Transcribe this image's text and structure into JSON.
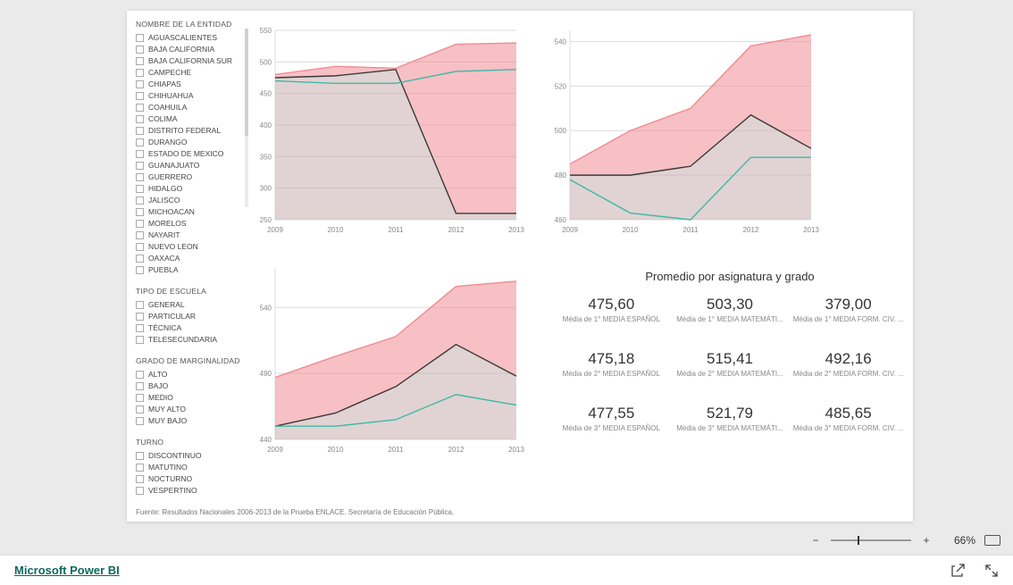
{
  "background_color": "#eaeaea",
  "report_bg": "#ffffff",
  "filters": {
    "entidad": {
      "title": "NOMBRE DE LA ENTIDAD",
      "items": [
        "AGUASCALIENTES",
        "BAJA CALIFORNIA",
        "BAJA CALIFORNIA SUR",
        "CAMPECHE",
        "CHIAPAS",
        "CHIHUAHUA",
        "COAHUILA",
        "COLIMA",
        "DISTRITO FEDERAL",
        "DURANGO",
        "ESTADO DE MEXICO",
        "GUANAJUATO",
        "GUERRERO",
        "HIDALGO",
        "JALISCO",
        "MICHOACAN",
        "MORELOS",
        "NAYARIT",
        "NUEVO LEON",
        "OAXACA",
        "PUEBLA"
      ]
    },
    "tipo_escuela": {
      "title": "TIPO DE ESCUELA",
      "items": [
        "GENERAL",
        "PARTICULAR",
        "TÉCNICA",
        "TELESECUNDARIA"
      ]
    },
    "marginalidad": {
      "title": "GRADO DE MARGINALIDAD",
      "items": [
        "ALTO",
        "BAJO",
        "MEDIO",
        "MUY ALTO",
        "MUY BAJO"
      ]
    },
    "turno": {
      "title": "TURNO",
      "items": [
        "DISCONTINUO",
        "MATUTINO",
        "NOCTURNO",
        "VESPERTINO"
      ]
    }
  },
  "chart_style": {
    "series_colors": {
      "pink": "#f08c94",
      "teal": "#3fb8a8",
      "black": "#3a3a3a"
    },
    "area_fill": "#c9aeae",
    "area_fill_opacity": 0.55,
    "grid_color": "#dcdcdc",
    "axis_text_color": "#888888",
    "axis_fontsize": 8,
    "line_width": 1.4,
    "background": "#ffffff"
  },
  "charts": {
    "tl": {
      "type": "area-line",
      "x": [
        "2009",
        "2010",
        "2011",
        "2012",
        "2013"
      ],
      "ylim": [
        250,
        550
      ],
      "ytick_step": 50,
      "series": {
        "pink": [
          480,
          493,
          490,
          528,
          530
        ],
        "teal": [
          470,
          466,
          466,
          485,
          488
        ],
        "black": [
          475,
          478,
          488,
          260,
          260
        ]
      }
    },
    "tr": {
      "type": "area-line",
      "x": [
        "2009",
        "2010",
        "2011",
        "2012",
        "2013"
      ],
      "ylim": [
        460,
        545
      ],
      "ytick_step": 20,
      "series": {
        "pink": [
          485,
          500,
          510,
          538,
          543
        ],
        "teal": [
          478,
          463,
          460,
          488,
          488
        ],
        "black": [
          480,
          480,
          484,
          507,
          492
        ]
      }
    },
    "bl": {
      "type": "area-line",
      "x": [
        "2009",
        "2010",
        "2011",
        "2012",
        "2013"
      ],
      "ylim": [
        440,
        570
      ],
      "ytick_step": 50,
      "series": {
        "pink": [
          487,
          503,
          518,
          556,
          560
        ],
        "teal": [
          450,
          450,
          455,
          474,
          466
        ],
        "black": [
          450,
          460,
          480,
          512,
          488
        ]
      }
    }
  },
  "kpi": {
    "title": "Promedio por asignatura y grado",
    "cells": [
      {
        "value": "475,60",
        "label": "Média de 1° MEDIA ESPAÑOL"
      },
      {
        "value": "503,30",
        "label": "Média de 1° MEDIA MATEMÁTI..."
      },
      {
        "value": "379,00",
        "label": "Média de 1° MEDIA FORM. CIV. ..."
      },
      {
        "value": "475,18",
        "label": "Média de 2° MEDIA ESPAÑOL"
      },
      {
        "value": "515,41",
        "label": "Média de 2° MEDIA MATEMÁTI..."
      },
      {
        "value": "492,16",
        "label": "Média de 2° MEDIA FORM. CIV. ..."
      },
      {
        "value": "477,55",
        "label": "Média de 3° MEDIA ESPAÑOL"
      },
      {
        "value": "521,79",
        "label": "Média de 3° MEDIA MATEMÁTI..."
      },
      {
        "value": "485,65",
        "label": "Média de 3° MEDIA FORM. CIV. ..."
      }
    ]
  },
  "source_note": "Fuente: Resultados Nacionales 2006-2013 de la Prueba ENLACE. Secretaría de Educación Pública.",
  "zoom": {
    "minus": "−",
    "plus": "+",
    "percent": "66%"
  },
  "footer": {
    "brand": "Microsoft Power BI"
  }
}
